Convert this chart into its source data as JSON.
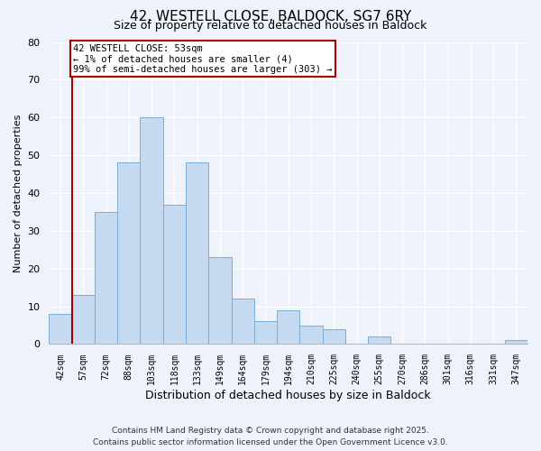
{
  "title": "42, WESTELL CLOSE, BALDOCK, SG7 6RY",
  "subtitle": "Size of property relative to detached houses in Baldock",
  "xlabel": "Distribution of detached houses by size in Baldock",
  "ylabel": "Number of detached properties",
  "bar_labels": [
    "42sqm",
    "57sqm",
    "72sqm",
    "88sqm",
    "103sqm",
    "118sqm",
    "133sqm",
    "149sqm",
    "164sqm",
    "179sqm",
    "194sqm",
    "210sqm",
    "225sqm",
    "240sqm",
    "255sqm",
    "270sqm",
    "286sqm",
    "301sqm",
    "316sqm",
    "331sqm",
    "347sqm"
  ],
  "bar_values": [
    8,
    13,
    35,
    48,
    60,
    37,
    48,
    23,
    12,
    6,
    9,
    5,
    4,
    0,
    2,
    0,
    0,
    0,
    0,
    0,
    1
  ],
  "bar_color": "#c5d9f0",
  "bar_edge_color": "#7badd4",
  "ylim": [
    0,
    80
  ],
  "yticks": [
    0,
    10,
    20,
    30,
    40,
    50,
    60,
    70,
    80
  ],
  "property_line_color": "#aa0000",
  "annotation_line1": "42 WESTELL CLOSE: 53sqm",
  "annotation_line2": "← 1% of detached houses are smaller (4)",
  "annotation_line3": "99% of semi-detached houses are larger (303) →",
  "annotation_box_color": "#ffffff",
  "annotation_box_edge_color": "#aa0000",
  "footer_line1": "Contains HM Land Registry data © Crown copyright and database right 2025.",
  "footer_line2": "Contains public sector information licensed under the Open Government Licence v3.0.",
  "background_color": "#eef2fb",
  "grid_color": "#ffffff",
  "title_fontsize": 11,
  "subtitle_fontsize": 9,
  "ylabel_fontsize": 8,
  "xlabel_fontsize": 9,
  "tick_fontsize": 7,
  "footer_fontsize": 6.5
}
